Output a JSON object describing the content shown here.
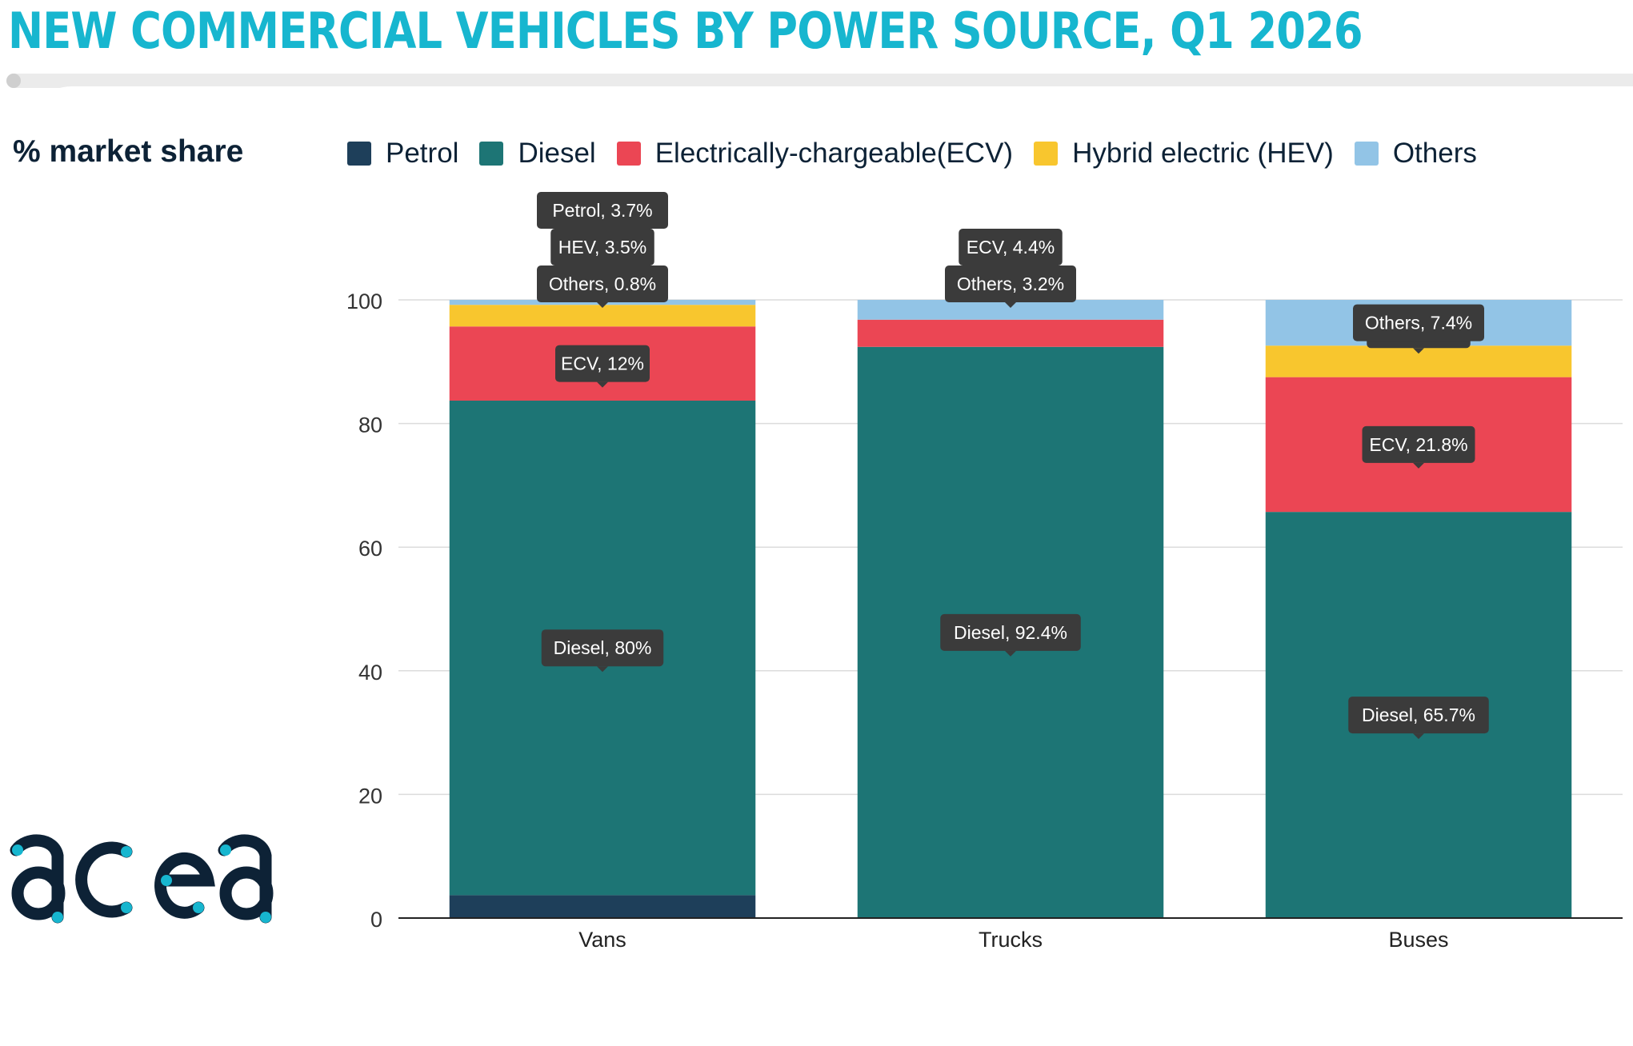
{
  "title": "NEW COMMERCIAL VEHICLES BY POWER SOURCE, Q1 2026",
  "y_axis_label": "% market share",
  "logo_text": "acea",
  "colors": {
    "title": "#17b6cf",
    "petrol": "#1e3f5a",
    "diesel": "#1d7575",
    "ecv": "#eb4654",
    "hev": "#f8c62e",
    "others": "#92c4e6",
    "tooltip": "#3b3b3b",
    "logo": "#0d2236",
    "logo_dot": "#17b6cf"
  },
  "chart_data": {
    "type": "bar",
    "stacked": true,
    "title": "NEW COMMERCIAL VEHICLES BY POWER SOURCE, Q1 2026",
    "ylabel": "% market share",
    "xlabel": "",
    "categories": [
      "Vans",
      "Trucks",
      "Buses"
    ],
    "ylim": [
      0,
      100
    ],
    "yticks": [
      0,
      20,
      40,
      60,
      80,
      100
    ],
    "grid": true,
    "legend_position": "top",
    "series": [
      {
        "name": "Petrol",
        "short": "Petrol",
        "color": "#1e3f5a",
        "values": [
          3.7,
          0,
          0
        ]
      },
      {
        "name": "Diesel",
        "short": "Diesel",
        "color": "#1d7575",
        "values": [
          80,
          92.4,
          65.7
        ]
      },
      {
        "name": "Electrically-chargeable(ECV)",
        "short": "ECV",
        "color": "#eb4654",
        "values": [
          12,
          4.4,
          21.8
        ]
      },
      {
        "name": "Hybrid electric (HEV)",
        "short": "HEV",
        "color": "#f8c62e",
        "values": [
          3.5,
          0,
          5.1
        ]
      },
      {
        "name": "Others",
        "short": "Others",
        "color": "#92c4e6",
        "values": [
          0.8,
          3.2,
          7.4
        ]
      }
    ],
    "data_labels": [
      [
        "Petrol, 3.7%",
        "",
        ""
      ],
      [
        "Diesel, 80%",
        "Diesel, 92.4%",
        "Diesel, 65.7%"
      ],
      [
        "ECV, 12%",
        "ECV, 4.4%",
        "ECV, 21.8%"
      ],
      [
        "HEV, 3.5%",
        "",
        "HEV, 5.1%"
      ],
      [
        "Others, 0.8%",
        "Others, 3.2%",
        "Others, 7.4%"
      ]
    ]
  }
}
